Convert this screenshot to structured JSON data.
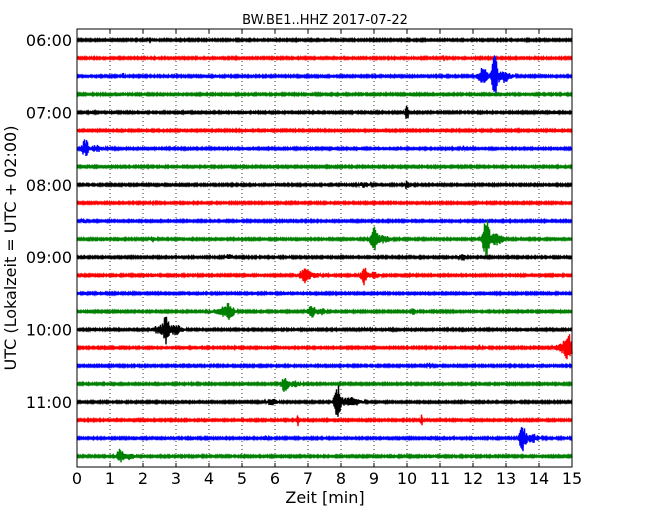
{
  "chart_data": {
    "type": "line",
    "title": "BW.BE1..HHZ 2017-07-22",
    "xlabel": "Zeit  [min]",
    "ylabel": "UTC (Lokalzeit = UTC + 02:00)",
    "xlim": [
      0,
      15
    ],
    "x_ticks": [
      "0",
      "1",
      "2",
      "3",
      "4",
      "5",
      "6",
      "7",
      "8",
      "9",
      "10",
      "11",
      "12",
      "13",
      "14",
      "15"
    ],
    "y_tick_labels": [
      {
        "label": "06:00",
        "row": 0
      },
      {
        "label": "07:00",
        "row": 4
      },
      {
        "label": "08:00",
        "row": 8
      },
      {
        "label": "09:00",
        "row": 12
      },
      {
        "label": "10:00",
        "row": 16
      },
      {
        "label": "11:00",
        "row": 20
      }
    ],
    "row_count": 24,
    "minutes_per_row": 15,
    "grid": "vertical-dotted",
    "colors": [
      "#000000",
      "#ff0000",
      "#0000ff",
      "#008000"
    ],
    "traces": [
      {
        "row": 0,
        "events": [
          {
            "t": 2.2,
            "a": 0.25,
            "d": 0.05
          }
        ]
      },
      {
        "row": 1,
        "events": [
          {
            "t": 11.1,
            "a": 0.3,
            "d": 0.04
          }
        ]
      },
      {
        "row": 2,
        "events": [
          {
            "t": 1.4,
            "a": 0.4,
            "d": 0.03
          },
          {
            "t": 12.3,
            "a": 0.8,
            "d": 0.15
          },
          {
            "t": 12.65,
            "a": 2.8,
            "d": 0.07
          },
          {
            "t": 12.9,
            "a": 0.6,
            "d": 0.25
          }
        ]
      },
      {
        "row": 3,
        "events": []
      },
      {
        "row": 4,
        "events": [
          {
            "t": 10.0,
            "a": 0.9,
            "d": 0.05
          }
        ]
      },
      {
        "row": 5,
        "events": []
      },
      {
        "row": 6,
        "events": [
          {
            "t": 0.25,
            "a": 0.9,
            "d": 0.1
          },
          {
            "t": 0.6,
            "a": 0.3,
            "d": 0.2
          },
          {
            "t": 11.7,
            "a": 0.3,
            "d": 0.04
          }
        ]
      },
      {
        "row": 7,
        "events": []
      },
      {
        "row": 8,
        "events": [
          {
            "t": 8.7,
            "a": 0.25,
            "d": 0.15
          },
          {
            "t": 10.0,
            "a": 0.5,
            "d": 0.05
          }
        ]
      },
      {
        "row": 9,
        "events": [
          {
            "t": 2.3,
            "a": 0.2,
            "d": 0.05
          }
        ]
      },
      {
        "row": 10,
        "events": [
          {
            "t": 0.2,
            "a": 0.2,
            "d": 0.05
          }
        ]
      },
      {
        "row": 11,
        "events": [
          {
            "t": 2.3,
            "a": 0.25,
            "d": 0.1
          },
          {
            "t": 9.0,
            "a": 1.4,
            "d": 0.1
          },
          {
            "t": 9.3,
            "a": 0.4,
            "d": 0.2
          },
          {
            "t": 12.4,
            "a": 2.2,
            "d": 0.1
          },
          {
            "t": 12.7,
            "a": 0.6,
            "d": 0.2
          }
        ]
      },
      {
        "row": 12,
        "events": [
          {
            "t": 4.6,
            "a": 0.25,
            "d": 0.1
          },
          {
            "t": 11.7,
            "a": 0.3,
            "d": 0.08
          }
        ]
      },
      {
        "row": 13,
        "events": [
          {
            "t": 6.9,
            "a": 0.7,
            "d": 0.15
          },
          {
            "t": 7.2,
            "a": 0.25,
            "d": 0.15
          },
          {
            "t": 8.7,
            "a": 0.9,
            "d": 0.1
          },
          {
            "t": 9.0,
            "a": 0.3,
            "d": 0.15
          }
        ]
      },
      {
        "row": 14,
        "events": []
      },
      {
        "row": 15,
        "events": [
          {
            "t": 4.6,
            "a": 0.6,
            "d": 0.15
          },
          {
            "t": 4.4,
            "a": 0.3,
            "d": 0.3
          },
          {
            "t": 7.1,
            "a": 0.6,
            "d": 0.12
          },
          {
            "t": 7.4,
            "a": 0.3,
            "d": 0.15
          },
          {
            "t": 10.2,
            "a": 0.3,
            "d": 0.06
          }
        ]
      },
      {
        "row": 16,
        "events": [
          {
            "t": 2.5,
            "a": 0.4,
            "d": 0.2
          },
          {
            "t": 2.7,
            "a": 1.4,
            "d": 0.08
          },
          {
            "t": 3.0,
            "a": 0.5,
            "d": 0.2
          },
          {
            "t": 8.8,
            "a": 0.3,
            "d": 0.05
          }
        ]
      },
      {
        "row": 17,
        "events": [
          {
            "t": 12.2,
            "a": 0.3,
            "d": 0.05
          },
          {
            "t": 14.9,
            "a": 1.3,
            "d": 0.12
          },
          {
            "t": 14.7,
            "a": 0.4,
            "d": 0.2
          }
        ]
      },
      {
        "row": 18,
        "events": [
          {
            "t": 10.7,
            "a": 0.3,
            "d": 0.05
          }
        ]
      },
      {
        "row": 19,
        "events": [
          {
            "t": 6.3,
            "a": 0.8,
            "d": 0.1
          },
          {
            "t": 6.6,
            "a": 0.3,
            "d": 0.15
          }
        ]
      },
      {
        "row": 20,
        "events": [
          {
            "t": 5.9,
            "a": 0.3,
            "d": 0.15
          },
          {
            "t": 7.9,
            "a": 1.8,
            "d": 0.1
          },
          {
            "t": 8.3,
            "a": 0.5,
            "d": 0.25
          }
        ]
      },
      {
        "row": 21,
        "events": [
          {
            "t": 6.7,
            "a": 0.6,
            "d": 0.03
          },
          {
            "t": 10.45,
            "a": 0.6,
            "d": 0.03
          }
        ]
      },
      {
        "row": 22,
        "events": [
          {
            "t": 5.7,
            "a": 0.2,
            "d": 0.08
          },
          {
            "t": 13.5,
            "a": 1.2,
            "d": 0.1
          },
          {
            "t": 13.8,
            "a": 0.4,
            "d": 0.2
          }
        ]
      },
      {
        "row": 23,
        "events": [
          {
            "t": 1.3,
            "a": 0.7,
            "d": 0.1
          },
          {
            "t": 1.6,
            "a": 0.3,
            "d": 0.15
          }
        ]
      }
    ]
  }
}
